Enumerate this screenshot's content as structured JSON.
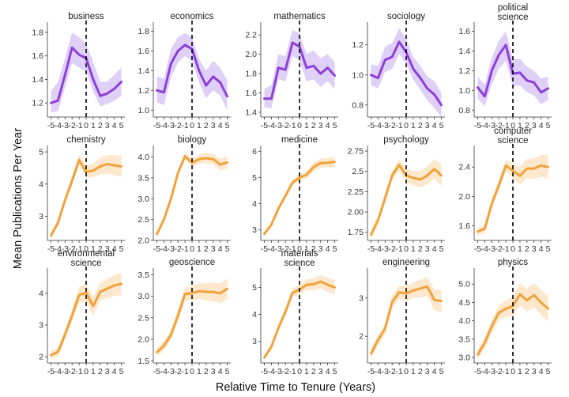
{
  "figure": {
    "ylabel": "Mean Publications Per Year",
    "xlabel": "Relative Time to Tenure (Years)"
  },
  "colors": {
    "purple_line": "#8e3fd8",
    "purple_band": "#dccbf7",
    "orange_line": "#f2a23a",
    "orange_band": "#fde6c8"
  },
  "chart_data": [
    {
      "type": "line",
      "title": "business",
      "color": "purple",
      "x": [
        -5,
        -4,
        -3,
        -2,
        -1,
        0,
        1,
        2,
        3,
        4,
        5
      ],
      "yticks": [
        1.2,
        1.4,
        1.6,
        1.8
      ],
      "ylim": [
        1.08,
        1.86
      ],
      "series": [
        {
          "values": [
            1.2,
            1.22,
            1.44,
            1.67,
            1.61,
            1.58,
            1.4,
            1.26,
            1.28,
            1.32,
            1.38
          ],
          "lower": [
            1.12,
            1.13,
            1.33,
            1.54,
            1.5,
            1.47,
            1.3,
            1.17,
            1.19,
            1.22,
            1.26
          ],
          "upper": [
            1.3,
            1.38,
            1.58,
            1.8,
            1.76,
            1.7,
            1.55,
            1.38,
            1.38,
            1.44,
            1.5
          ]
        }
      ]
    },
    {
      "type": "line",
      "title": "economics",
      "color": "purple",
      "x": [
        -5,
        -4,
        -3,
        -2,
        -1,
        0,
        1,
        2,
        3,
        4,
        5
      ],
      "yticks": [
        1.0,
        1.2,
        1.4,
        1.6,
        1.8
      ],
      "ylim": [
        0.93,
        1.86
      ],
      "series": [
        {
          "values": [
            1.2,
            1.18,
            1.47,
            1.6,
            1.66,
            1.62,
            1.4,
            1.25,
            1.34,
            1.28,
            1.14
          ],
          "lower": [
            1.08,
            1.05,
            1.33,
            1.48,
            1.55,
            1.5,
            1.28,
            1.12,
            1.2,
            1.15,
            1.0
          ],
          "upper": [
            1.34,
            1.32,
            1.62,
            1.74,
            1.78,
            1.74,
            1.52,
            1.4,
            1.5,
            1.43,
            1.3
          ]
        }
      ]
    },
    {
      "type": "line",
      "title": "mathematics",
      "color": "purple",
      "x": [
        -5,
        -4,
        -3,
        -2,
        -1,
        0,
        1,
        2,
        3,
        4,
        5
      ],
      "yticks": [
        1.4,
        1.6,
        1.8,
        2.0,
        2.2
      ],
      "ylim": [
        1.35,
        2.3
      ],
      "series": [
        {
          "values": [
            1.54,
            1.54,
            1.86,
            1.84,
            2.12,
            2.08,
            1.86,
            1.88,
            1.8,
            1.86,
            1.78
          ],
          "lower": [
            1.45,
            1.44,
            1.74,
            1.72,
            1.98,
            1.94,
            1.72,
            1.74,
            1.66,
            1.72,
            1.64
          ],
          "upper": [
            1.64,
            1.68,
            2.0,
            1.98,
            2.25,
            2.22,
            2.0,
            2.04,
            1.96,
            2.0,
            1.92
          ]
        }
      ]
    },
    {
      "type": "line",
      "title": "sociology",
      "color": "purple",
      "x": [
        -5,
        -4,
        -3,
        -2,
        -1,
        0,
        1,
        2,
        3,
        4,
        5
      ],
      "yticks": [
        0.8,
        1.0,
        1.2
      ],
      "ylim": [
        0.72,
        1.33
      ],
      "series": [
        {
          "values": [
            1.0,
            0.98,
            1.1,
            1.12,
            1.22,
            1.15,
            1.04,
            0.98,
            0.91,
            0.87,
            0.8
          ],
          "lower": [
            0.93,
            0.91,
            1.02,
            1.04,
            1.14,
            1.07,
            0.97,
            0.9,
            0.83,
            0.78,
            0.72
          ],
          "upper": [
            1.07,
            1.06,
            1.19,
            1.21,
            1.31,
            1.24,
            1.12,
            1.06,
            0.99,
            0.96,
            0.88
          ]
        }
      ]
    },
    {
      "type": "line",
      "title": "political\nscience",
      "color": "purple",
      "x": [
        -5,
        -4,
        -3,
        -2,
        -1,
        0,
        1,
        2,
        3,
        4,
        5
      ],
      "yticks": [
        0.8,
        1.0,
        1.2,
        1.4,
        1.6
      ],
      "ylim": [
        0.73,
        1.66
      ],
      "series": [
        {
          "values": [
            1.03,
            0.94,
            1.2,
            1.36,
            1.46,
            1.17,
            1.18,
            1.1,
            1.08,
            0.98,
            1.02
          ],
          "lower": [
            0.92,
            0.84,
            1.06,
            1.22,
            1.3,
            1.04,
            1.05,
            0.98,
            0.95,
            0.86,
            0.9
          ],
          "upper": [
            1.14,
            1.06,
            1.33,
            1.5,
            1.6,
            1.32,
            1.32,
            1.24,
            1.2,
            1.12,
            1.14
          ]
        }
      ]
    },
    {
      "type": "line",
      "title": "chemistry",
      "color": "orange",
      "x": [
        -5,
        -4,
        -3,
        -2,
        -1,
        0,
        1,
        2,
        3,
        4,
        5
      ],
      "yticks": [
        3,
        4,
        5
      ],
      "ylim": [
        2.25,
        5.1
      ],
      "series": [
        {
          "values": [
            2.4,
            2.8,
            3.5,
            4.1,
            4.75,
            4.38,
            4.42,
            4.55,
            4.62,
            4.58,
            4.55
          ],
          "lower": [
            2.32,
            2.7,
            3.38,
            3.98,
            4.6,
            4.2,
            4.22,
            4.3,
            4.34,
            4.28,
            4.22
          ],
          "upper": [
            2.48,
            2.92,
            3.62,
            4.24,
            4.92,
            4.56,
            4.64,
            4.82,
            4.9,
            4.9,
            4.88
          ]
        }
      ]
    },
    {
      "type": "line",
      "title": "biology",
      "color": "orange",
      "x": [
        -5,
        -4,
        -3,
        -2,
        -1,
        0,
        1,
        2,
        3,
        4,
        5
      ],
      "yticks": [
        2.0,
        2.5,
        3.0,
        3.5,
        4.0
      ],
      "ylim": [
        2.0,
        4.2
      ],
      "series": [
        {
          "values": [
            2.15,
            2.5,
            3.0,
            3.62,
            4.02,
            3.86,
            3.95,
            3.97,
            3.95,
            3.82,
            3.87
          ],
          "lower": [
            2.1,
            2.44,
            2.93,
            3.55,
            3.94,
            3.76,
            3.84,
            3.85,
            3.82,
            3.68,
            3.72
          ],
          "upper": [
            2.2,
            2.56,
            3.07,
            3.7,
            4.1,
            3.96,
            4.06,
            4.1,
            4.08,
            3.96,
            4.02
          ]
        }
      ]
    },
    {
      "type": "line",
      "title": "medicine",
      "color": "orange",
      "x": [
        -5,
        -4,
        -3,
        -2,
        -1,
        0,
        1,
        2,
        3,
        4,
        5
      ],
      "yticks": [
        3,
        4,
        5,
        6
      ],
      "ylim": [
        2.6,
        6.1
      ],
      "series": [
        {
          "values": [
            2.85,
            3.2,
            3.82,
            4.3,
            4.8,
            5.0,
            5.1,
            5.4,
            5.55,
            5.56,
            5.6
          ],
          "lower": [
            2.78,
            3.12,
            3.74,
            4.2,
            4.7,
            4.88,
            4.96,
            5.24,
            5.38,
            5.38,
            5.4
          ],
          "upper": [
            2.92,
            3.28,
            3.9,
            4.4,
            4.92,
            5.12,
            5.25,
            5.56,
            5.72,
            5.74,
            5.8
          ]
        }
      ]
    },
    {
      "type": "line",
      "title": "psychology",
      "color": "orange",
      "x": [
        -5,
        -4,
        -3,
        -2,
        -1,
        0,
        1,
        2,
        3,
        4,
        5
      ],
      "yticks": [
        1.75,
        2.0,
        2.25,
        2.5,
        2.75
      ],
      "ylim": [
        1.65,
        2.78
      ],
      "series": [
        {
          "values": [
            1.72,
            1.9,
            2.17,
            2.45,
            2.58,
            2.45,
            2.42,
            2.4,
            2.45,
            2.53,
            2.45
          ],
          "lower": [
            1.67,
            1.85,
            2.11,
            2.39,
            2.51,
            2.37,
            2.33,
            2.3,
            2.34,
            2.41,
            2.32
          ],
          "upper": [
            1.77,
            1.95,
            2.23,
            2.51,
            2.65,
            2.53,
            2.51,
            2.5,
            2.56,
            2.65,
            2.58
          ]
        }
      ]
    },
    {
      "type": "line",
      "title": "computer\nscience",
      "color": "orange",
      "x": [
        -5,
        -4,
        -3,
        -2,
        -1,
        0,
        1,
        2,
        3,
        4,
        5
      ],
      "yticks": [
        1.6,
        2.0,
        2.4
      ],
      "ylim": [
        1.4,
        2.65
      ],
      "series": [
        {
          "values": [
            1.52,
            1.56,
            1.9,
            2.15,
            2.42,
            2.35,
            2.28,
            2.38,
            2.38,
            2.42,
            2.4
          ],
          "lower": [
            1.47,
            1.5,
            1.84,
            2.08,
            2.34,
            2.25,
            2.16,
            2.25,
            2.24,
            2.27,
            2.24
          ],
          "upper": [
            1.57,
            1.62,
            1.96,
            2.22,
            2.5,
            2.45,
            2.4,
            2.51,
            2.52,
            2.57,
            2.56
          ]
        }
      ]
    },
    {
      "type": "line",
      "title": "environmental\nscience",
      "color": "orange",
      "x": [
        -5,
        -4,
        -3,
        -2,
        -1,
        0,
        1,
        2,
        3,
        4,
        5
      ],
      "yticks": [
        2,
        3,
        4
      ],
      "ylim": [
        1.8,
        4.7
      ],
      "series": [
        {
          "values": [
            2.05,
            2.15,
            2.7,
            3.3,
            3.95,
            4.02,
            3.6,
            4.05,
            4.15,
            4.25,
            4.3
          ],
          "lower": [
            1.92,
            2.02,
            2.55,
            3.12,
            3.7,
            3.75,
            3.3,
            3.78,
            3.85,
            3.92,
            3.95
          ],
          "upper": [
            2.18,
            2.28,
            2.85,
            3.48,
            4.2,
            4.3,
            3.9,
            4.32,
            4.45,
            4.58,
            4.65
          ]
        }
      ]
    },
    {
      "type": "line",
      "title": "geoscience",
      "color": "orange",
      "x": [
        -5,
        -4,
        -3,
        -2,
        -1,
        0,
        1,
        2,
        3,
        4,
        5
      ],
      "yticks": [
        1.5,
        2.0,
        2.5,
        3.0,
        3.5
      ],
      "ylim": [
        1.45,
        3.58
      ],
      "series": [
        {
          "values": [
            1.7,
            1.85,
            2.1,
            2.55,
            3.05,
            3.07,
            3.12,
            3.1,
            3.1,
            3.07,
            3.17
          ],
          "lower": [
            1.6,
            1.74,
            1.98,
            2.42,
            2.9,
            2.9,
            2.94,
            2.9,
            2.88,
            2.84,
            2.93
          ],
          "upper": [
            1.8,
            1.96,
            2.22,
            2.68,
            3.2,
            3.24,
            3.3,
            3.3,
            3.32,
            3.3,
            3.41
          ]
        }
      ]
    },
    {
      "type": "line",
      "title": "materials\nscience",
      "color": "orange",
      "x": [
        -5,
        -4,
        -3,
        -2,
        -1,
        0,
        1,
        2,
        3,
        4,
        5
      ],
      "yticks": [
        3,
        4,
        5
      ],
      "ylim": [
        2.2,
        5.6
      ],
      "series": [
        {
          "values": [
            2.4,
            2.8,
            3.5,
            4.1,
            4.8,
            4.92,
            5.1,
            5.12,
            5.22,
            5.1,
            5.0
          ],
          "lower": [
            2.32,
            2.7,
            3.38,
            3.96,
            4.64,
            4.74,
            4.9,
            4.9,
            4.98,
            4.84,
            4.72
          ],
          "upper": [
            2.48,
            2.9,
            3.62,
            4.24,
            4.96,
            5.1,
            5.3,
            5.34,
            5.46,
            5.36,
            5.28
          ]
        }
      ]
    },
    {
      "type": "line",
      "title": "engineering",
      "color": "orange",
      "x": [
        -5,
        -4,
        -3,
        -2,
        -1,
        0,
        1,
        2,
        3,
        4,
        5
      ],
      "yticks": [
        2,
        3
      ],
      "ylim": [
        1.3,
        3.7
      ],
      "series": [
        {
          "values": [
            1.55,
            1.9,
            2.2,
            2.9,
            3.15,
            3.12,
            3.2,
            3.25,
            3.3,
            2.95,
            2.92
          ],
          "lower": [
            1.42,
            1.78,
            2.06,
            2.74,
            2.98,
            2.92,
            3.0,
            3.02,
            3.05,
            2.68,
            2.62
          ],
          "upper": [
            1.68,
            2.02,
            2.34,
            3.06,
            3.32,
            3.32,
            3.4,
            3.48,
            3.55,
            3.22,
            3.22
          ]
        }
      ]
    },
    {
      "type": "line",
      "title": "physics",
      "color": "orange",
      "x": [
        -5,
        -4,
        -3,
        -2,
        -1,
        0,
        1,
        2,
        3,
        4,
        5
      ],
      "yticks": [
        3.0,
        3.5,
        4.0,
        4.5,
        5.0
      ],
      "ylim": [
        2.85,
        5.35
      ],
      "series": [
        {
          "values": [
            3.08,
            3.4,
            3.85,
            4.22,
            4.33,
            4.4,
            4.72,
            4.56,
            4.7,
            4.5,
            4.33
          ],
          "lower": [
            2.95,
            3.25,
            3.67,
            4.02,
            4.1,
            4.15,
            4.42,
            4.25,
            4.37,
            4.16,
            3.97
          ],
          "upper": [
            3.21,
            3.55,
            4.03,
            4.42,
            4.56,
            4.65,
            5.02,
            4.87,
            5.03,
            4.84,
            4.69
          ]
        }
      ]
    }
  ]
}
